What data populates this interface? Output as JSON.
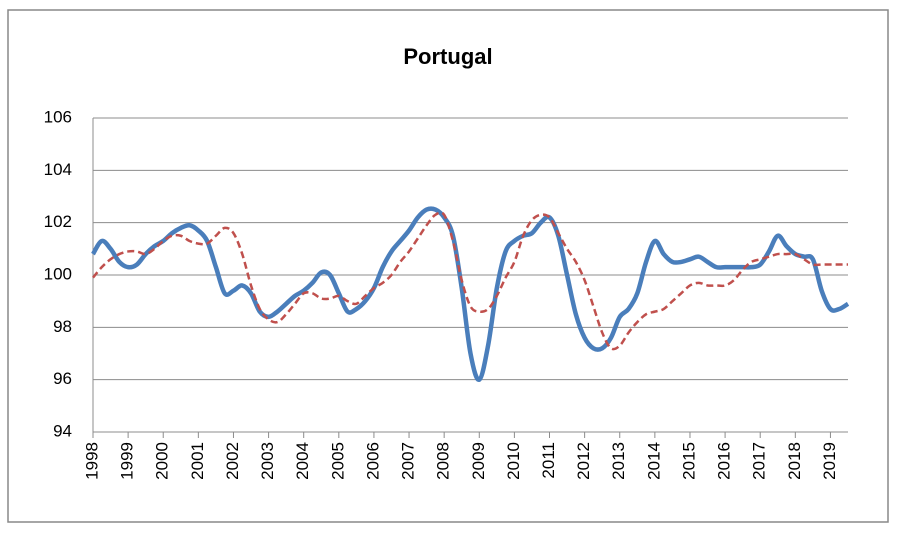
{
  "chart_data": {
    "type": "line",
    "title": "Portugal",
    "categories": [
      "1998",
      null,
      null,
      null,
      "1999",
      null,
      null,
      null,
      "2000",
      null,
      null,
      null,
      "2001",
      null,
      null,
      null,
      "2002",
      null,
      null,
      null,
      "2003",
      null,
      null,
      null,
      "2004",
      null,
      null,
      null,
      "2005",
      null,
      null,
      null,
      "2006",
      null,
      null,
      null,
      "2007",
      null,
      null,
      null,
      "2008",
      null,
      null,
      null,
      "2009",
      null,
      null,
      null,
      "2010",
      null,
      null,
      null,
      "2011",
      null,
      null,
      null,
      "2012",
      null,
      null,
      null,
      "2013",
      null,
      null,
      null,
      "2014",
      null,
      null,
      null,
      "2015",
      null,
      null,
      null,
      "2016",
      null,
      null,
      null,
      "2017",
      null,
      null,
      null,
      "2018",
      null,
      null,
      null,
      "2019",
      null,
      null
    ],
    "series": [
      {
        "color": "#4a7ebb",
        "style": "solid",
        "values": [
          100.8,
          101.3,
          101.0,
          100.5,
          100.3,
          100.4,
          100.8,
          101.1,
          101.3,
          101.6,
          101.8,
          101.9,
          101.7,
          101.3,
          100.3,
          99.3,
          99.4,
          99.6,
          99.3,
          98.6,
          98.4,
          98.6,
          98.9,
          99.2,
          99.4,
          99.7,
          100.1,
          100.0,
          99.3,
          98.6,
          98.7,
          99.0,
          99.5,
          100.3,
          100.9,
          101.3,
          101.7,
          102.2,
          102.5,
          102.5,
          102.2,
          101.5,
          99.5,
          97.0,
          96.0,
          97.3,
          99.5,
          100.9,
          101.3,
          101.5,
          101.6,
          102.0,
          102.2,
          101.5,
          100.0,
          98.5,
          97.6,
          97.2,
          97.2,
          97.6,
          98.4,
          98.7,
          99.3,
          100.5,
          101.3,
          100.8,
          100.5,
          100.5,
          100.6,
          100.7,
          100.5,
          100.3,
          100.3,
          100.3,
          100.3,
          100.3,
          100.4,
          100.9,
          101.5,
          101.1,
          100.8,
          100.7,
          100.6,
          99.4,
          98.7,
          98.7,
          98.9
        ]
      },
      {
        "color": "#c0504d",
        "style": "dashed",
        "values": [
          99.9,
          100.3,
          100.6,
          100.8,
          100.9,
          100.9,
          100.8,
          101.0,
          101.3,
          101.5,
          101.5,
          101.3,
          101.2,
          101.2,
          101.5,
          101.8,
          101.6,
          100.8,
          99.6,
          98.7,
          98.3,
          98.2,
          98.5,
          98.9,
          99.3,
          99.3,
          99.1,
          99.1,
          99.2,
          99.0,
          98.9,
          99.2,
          99.5,
          99.7,
          100.0,
          100.5,
          100.9,
          101.4,
          101.9,
          102.3,
          102.3,
          101.3,
          99.8,
          98.8,
          98.6,
          98.7,
          99.2,
          99.9,
          100.5,
          101.5,
          102.1,
          102.3,
          102.2,
          101.6,
          101.0,
          100.5,
          99.8,
          98.8,
          97.8,
          97.2,
          97.3,
          97.8,
          98.2,
          98.5,
          98.6,
          98.7,
          99.0,
          99.3,
          99.6,
          99.7,
          99.6,
          99.6,
          99.6,
          99.8,
          100.2,
          100.5,
          100.6,
          100.7,
          100.8,
          100.8,
          100.8,
          100.6,
          100.4,
          100.4,
          100.4,
          100.4,
          100.4
        ]
      }
    ],
    "ylim": [
      94,
      106
    ],
    "yticks": [
      94,
      96,
      98,
      100,
      102,
      104,
      106
    ],
    "grid": true
  }
}
